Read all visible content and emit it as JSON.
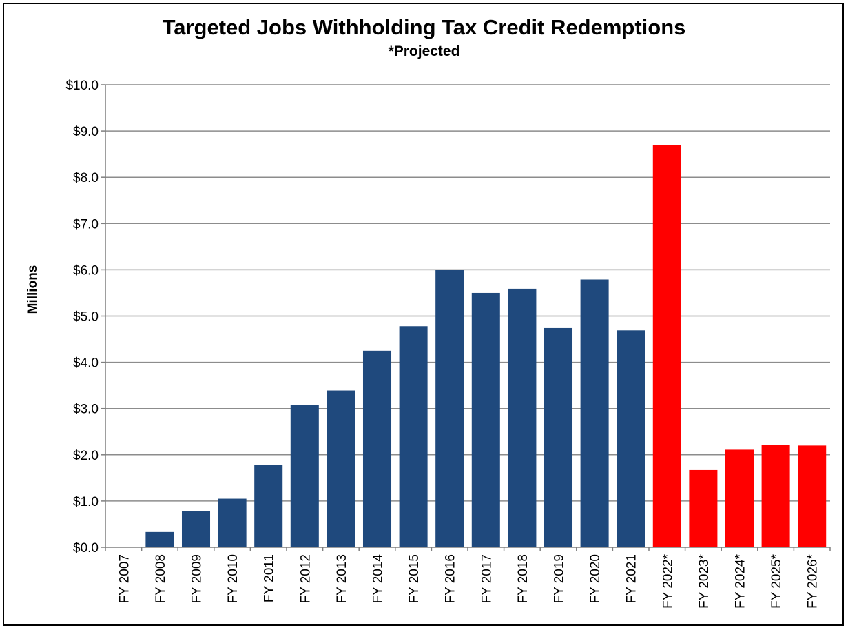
{
  "chart_data": {
    "type": "bar",
    "title": "Targeted Jobs Withholding Tax Credit Redemptions",
    "subtitle": "*Projected",
    "ylabel": "Millions",
    "xlabel": "",
    "ylim": [
      0,
      10
    ],
    "ytick_step": 1,
    "ytick_labels": [
      "$0.0",
      "$1.0",
      "$2.0",
      "$3.0",
      "$4.0",
      "$5.0",
      "$6.0",
      "$7.0",
      "$8.0",
      "$9.0",
      "$10.0"
    ],
    "grid": true,
    "legend": "none",
    "categories": [
      "FY 2007",
      "FY 2008",
      "FY 2009",
      "FY 2010",
      "FY 2011",
      "FY 2012",
      "FY 2013",
      "FY 2014",
      "FY 2015",
      "FY 2016",
      "FY 2017",
      "FY 2018",
      "FY 2019",
      "FY 2020",
      "FY 2021",
      "FY 2022*",
      "FY 2023*",
      "FY 2024*",
      "FY 2025*",
      "FY 2026*"
    ],
    "values": [
      0.0,
      0.33,
      0.78,
      1.05,
      1.78,
      3.08,
      3.39,
      4.25,
      4.78,
      6.0,
      5.5,
      5.59,
      4.74,
      5.79,
      4.69,
      8.7,
      1.67,
      2.11,
      2.21,
      2.2
    ],
    "projected": [
      false,
      false,
      false,
      false,
      false,
      false,
      false,
      false,
      false,
      false,
      false,
      false,
      false,
      false,
      false,
      true,
      true,
      true,
      true,
      true
    ],
    "colors": {
      "actual": "#1f497d",
      "projected": "#ff0000",
      "grid": "#8c8c8c",
      "axis": "#7f7f7f"
    }
  }
}
